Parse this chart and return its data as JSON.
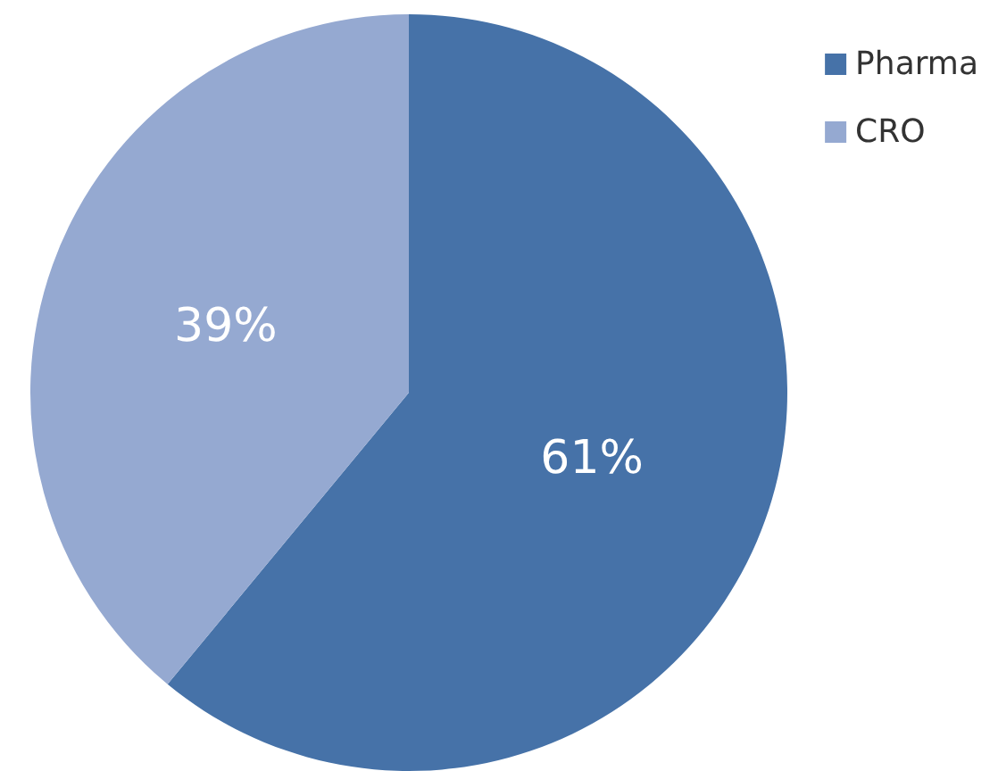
{
  "chart_data": {
    "type": "pie",
    "categories": [
      "Pharma",
      "CRO"
    ],
    "values": [
      61,
      39
    ],
    "colors": [
      "#4672a8",
      "#95a9d1"
    ],
    "value_labels": [
      "61%",
      "39%"
    ],
    "legend": "top right"
  }
}
